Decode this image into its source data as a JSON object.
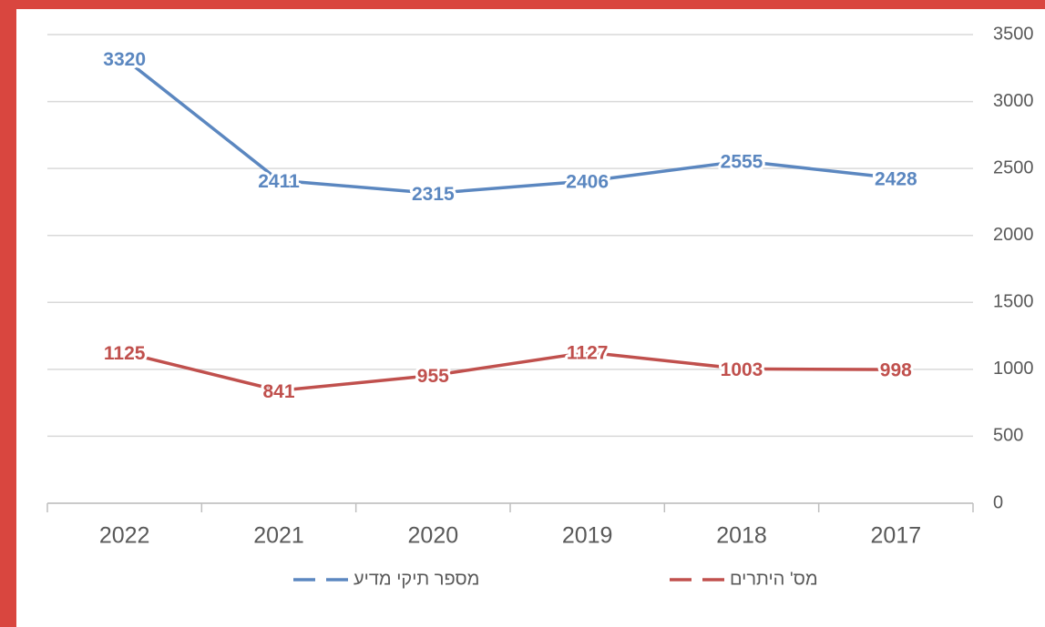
{
  "chart_data": {
    "type": "line",
    "categories": [
      "2022",
      "2021",
      "2020",
      "2019",
      "2018",
      "2017"
    ],
    "series": [
      {
        "name": "מספר תיקי מדיע",
        "color": "#5b87c0",
        "values": [
          3320,
          2411,
          2315,
          2406,
          2555,
          2428
        ]
      },
      {
        "name": "מס' היתרים",
        "color": "#c0504d",
        "values": [
          1125,
          841,
          955,
          1127,
          1003,
          998
        ]
      }
    ],
    "ylim": [
      0,
      3500
    ],
    "yticks": [
      0,
      500,
      1000,
      1500,
      2000,
      2500,
      3000,
      3500
    ],
    "grid": true,
    "legend": "bottom"
  }
}
